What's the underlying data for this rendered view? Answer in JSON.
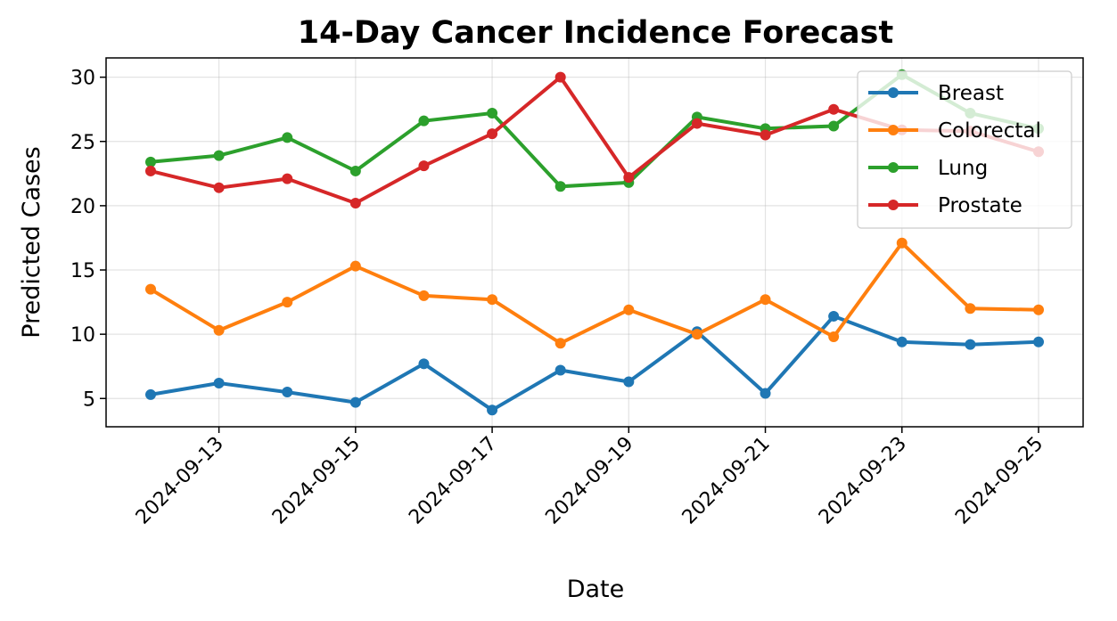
{
  "chart_data": {
    "type": "line",
    "title": "14-Day Cancer Incidence Forecast",
    "xlabel": "Date",
    "ylabel": "Predicted Cases",
    "x": [
      "2024-09-12",
      "2024-09-13",
      "2024-09-14",
      "2024-09-15",
      "2024-09-16",
      "2024-09-17",
      "2024-09-18",
      "2024-09-19",
      "2024-09-20",
      "2024-09-21",
      "2024-09-22",
      "2024-09-23",
      "2024-09-24",
      "2024-09-25"
    ],
    "xticks": [
      "2024-09-13",
      "2024-09-15",
      "2024-09-17",
      "2024-09-19",
      "2024-09-21",
      "2024-09-23",
      "2024-09-25"
    ],
    "yticks": [
      5,
      10,
      15,
      20,
      25,
      30
    ],
    "ylim": [
      2.8,
      31.5
    ],
    "grid": true,
    "legend_position": "top-right",
    "series": [
      {
        "name": "Breast",
        "color": "#1f77b4",
        "values": [
          5.3,
          6.2,
          5.5,
          4.7,
          7.7,
          4.1,
          7.2,
          6.3,
          10.2,
          5.4,
          11.4,
          9.4,
          9.2,
          9.4
        ]
      },
      {
        "name": "Colorectal",
        "color": "#ff7f0e",
        "values": [
          13.5,
          10.3,
          12.5,
          15.3,
          13.0,
          12.7,
          9.3,
          11.9,
          10.0,
          12.7,
          9.8,
          17.1,
          12.0,
          11.9
        ]
      },
      {
        "name": "Lung",
        "color": "#2ca02c",
        "values": [
          23.4,
          23.9,
          25.3,
          22.7,
          26.6,
          27.2,
          21.5,
          21.8,
          26.9,
          26.0,
          26.2,
          30.2,
          27.2,
          26.0
        ]
      },
      {
        "name": "Prostate",
        "color": "#d62728",
        "values": [
          22.7,
          21.4,
          22.1,
          20.2,
          23.1,
          25.6,
          30.0,
          22.2,
          26.4,
          25.5,
          27.5,
          25.9,
          25.8,
          24.2
        ]
      }
    ]
  }
}
